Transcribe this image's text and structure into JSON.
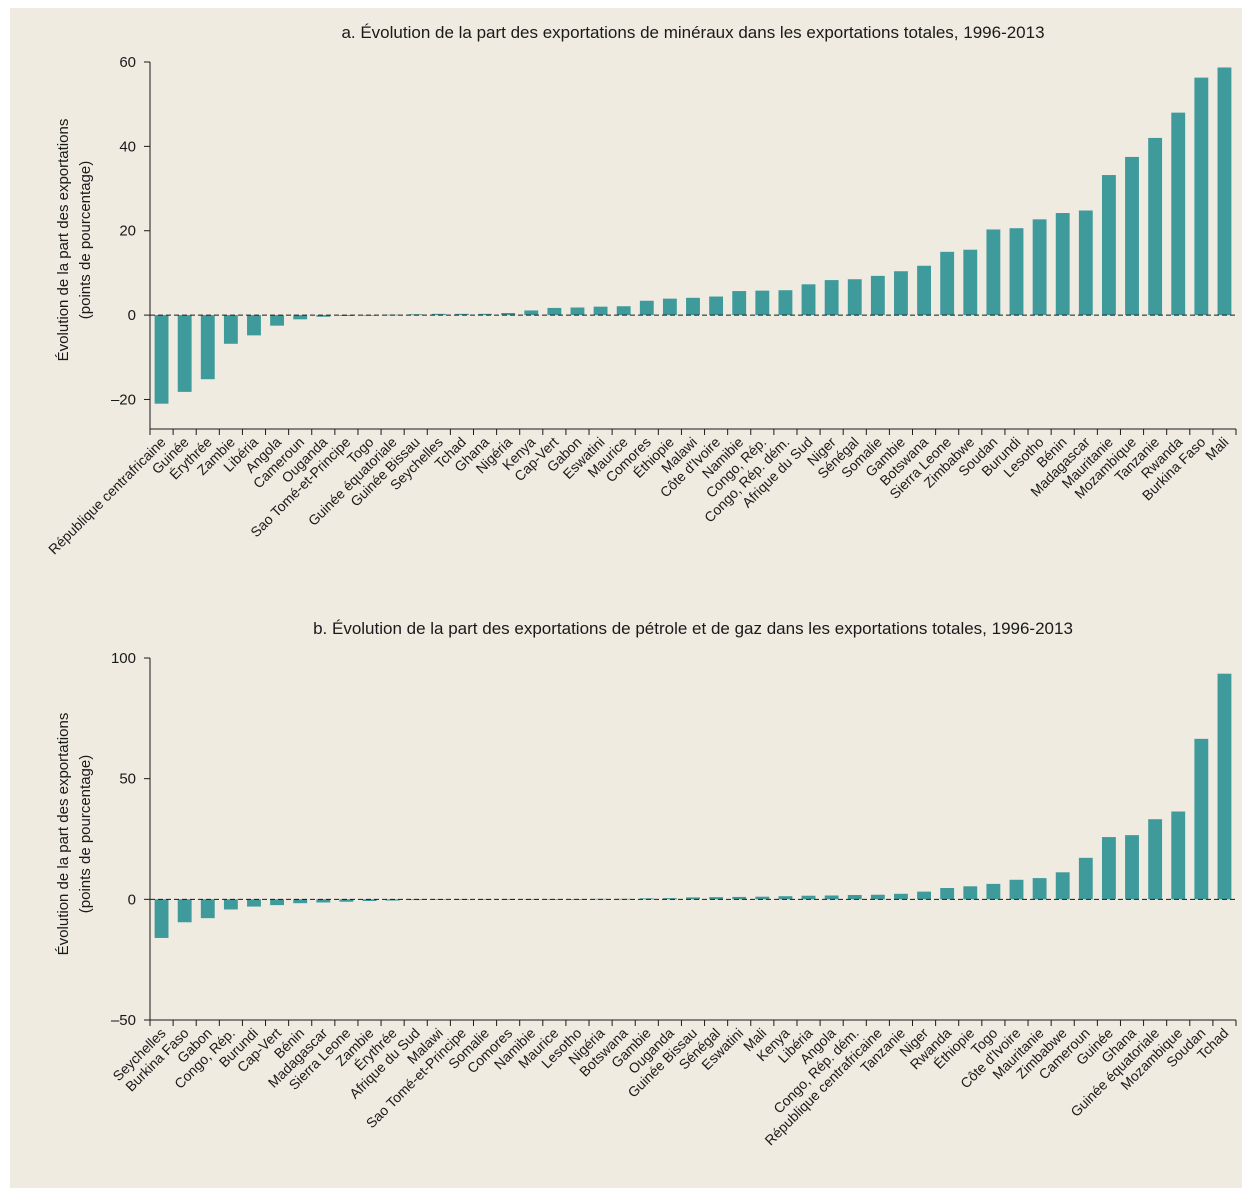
{
  "chart_data": [
    {
      "type": "bar",
      "title": "a. Évolution de la part des exportations de minéraux dans les exportations totales, 1996-2013",
      "ylabel": [
        "Évolution de la part des exportations",
        "(points de pourcentage)"
      ],
      "ylim": [
        -27,
        60
      ],
      "yticks": [
        60,
        40,
        20,
        0,
        -20
      ],
      "ytick_labels": [
        "60",
        "40",
        "20",
        "0",
        "–20"
      ],
      "bar_color": "#3f9a9b",
      "categories": [
        "République centrafricaine",
        "Guinée",
        "Érythrée",
        "Zambie",
        "Libéria",
        "Angola",
        "Cameroun",
        "Ouganda",
        "Sao Tomé-et-Principe",
        "Togo",
        "Guinée équatoriale",
        "Guinée Bissau",
        "Seychelles",
        "Tchad",
        "Ghana",
        "Nigéria",
        "Kenya",
        "Cap-Vert",
        "Gabon",
        "Eswatini",
        "Maurice",
        "Comores",
        "Éthiopie",
        "Malawi",
        "Côte d'Ivoire",
        "Namibie",
        "Congo, Rép.",
        "Congo, Rép. dém.",
        "Afrique du Sud",
        "Niger",
        "Sénégal",
        "Somalie",
        "Gambie",
        "Botswana",
        "Sierra Leone",
        "Zimbabwe",
        "Soudan",
        "Burundi",
        "Lesotho",
        "Bénin",
        "Madagascar",
        "Mauritanie",
        "Mozambique",
        "Tanzanie",
        "Rwanda",
        "Burkina Faso",
        "Mali"
      ],
      "values": [
        -21,
        -18.2,
        -15.2,
        -6.8,
        -4.8,
        -2.5,
        -1.0,
        -0.4,
        -0.2,
        -0.1,
        0.1,
        0.2,
        0.3,
        0.3,
        0.3,
        0.5,
        1.1,
        1.7,
        1.8,
        2.0,
        2.1,
        3.4,
        3.9,
        4.1,
        4.4,
        5.7,
        5.8,
        5.9,
        7.3,
        8.3,
        8.5,
        9.3,
        10.4,
        11.7,
        15.0,
        15.5,
        20.3,
        20.6,
        22.7,
        24.2,
        24.8,
        33.2,
        37.5,
        42.0,
        48.0,
        56.3,
        58.7
      ]
    },
    {
      "type": "bar",
      "title": "b. Évolution de la part des exportations de pétrole et de gaz dans les exportations totales, 1996-2013",
      "ylabel": [
        "Évolution de la part des exportations",
        "(points de pourcentage)"
      ],
      "ylim": [
        -50,
        100
      ],
      "yticks": [
        100,
        50,
        0,
        -50
      ],
      "ytick_labels": [
        "100",
        "50",
        "0",
        "–50"
      ],
      "bar_color": "#3f9a9b",
      "categories": [
        "Seychelles",
        "Burkina Faso",
        "Gabon",
        "Congo, Rép.",
        "Burundi",
        "Cap-Vert",
        "Bénin",
        "Madagascar",
        "Sierra Leone",
        "Zambie",
        "Érythrée",
        "Afrique du Sud",
        "Malawi",
        "Sao Tomé-et-Principe",
        "Somalie",
        "Comores",
        "Namibie",
        "Maurice",
        "Lesotho",
        "Nigéria",
        "Botswana",
        "Gambie",
        "Ouganda",
        "Guinée Bissau",
        "Sénégal",
        "Eswatini",
        "Mali",
        "Kenya",
        "Libéria",
        "Angola",
        "Congo, Rép. dém.",
        "République centrafricaine",
        "Tanzanie",
        "Niger",
        "Rwanda",
        "Éthiopie",
        "Togo",
        "Côte d'Ivoire",
        "Mauritanie",
        "Zimbabwe",
        "Cameroun",
        "Guinée",
        "Ghana",
        "Guinée équatoriale",
        "Mozambique",
        "Soudan",
        "Tchad"
      ],
      "values": [
        -16,
        -9.5,
        -7.8,
        -4.2,
        -3.0,
        -2.4,
        -1.6,
        -1.3,
        -1.0,
        -0.7,
        -0.5,
        -0.3,
        -0.2,
        -0.1,
        -0.1,
        0,
        0,
        0.1,
        0.1,
        0.2,
        0.2,
        0.4,
        0.5,
        0.8,
        0.9,
        1.0,
        1.1,
        1.3,
        1.5,
        1.6,
        1.8,
        1.9,
        2.3,
        3.2,
        4.7,
        5.4,
        6.4,
        8.1,
        8.8,
        11.2,
        17.2,
        25.8,
        26.6,
        33.2,
        36.4,
        66.5,
        93.5
      ]
    }
  ]
}
